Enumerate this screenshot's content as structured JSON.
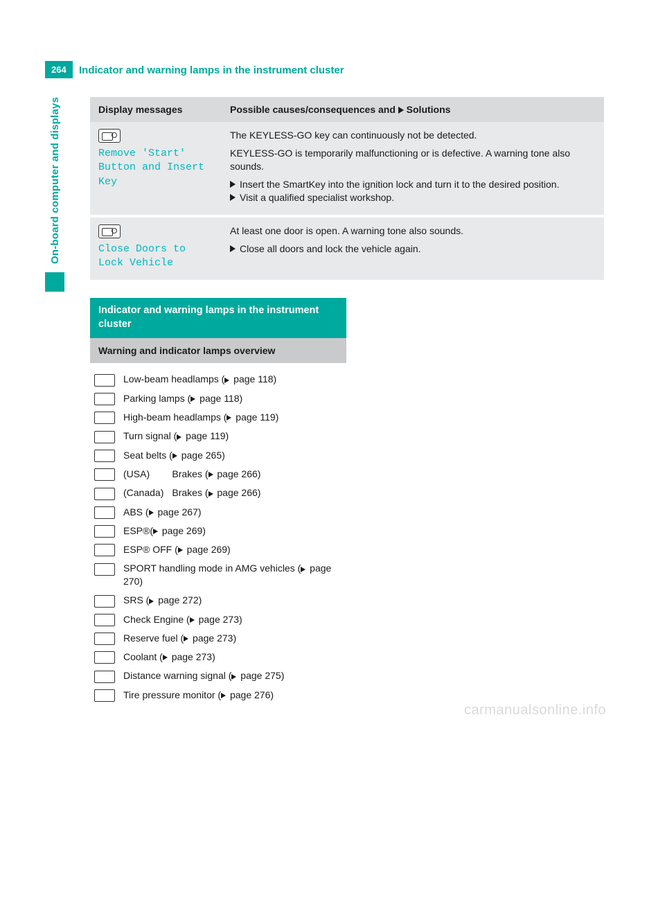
{
  "page_number": "264",
  "page_title": "Indicator and warning lamps in the instrument cluster",
  "side_tab": "On-board computer and displays",
  "brand_color": "#00a99d",
  "display_text_color": "#00b9c2",
  "table_header_bg": "#d9dadb",
  "table_row_bg": "#e8e9ea",
  "sub_header_bg": "#c9cacb",
  "msg_table": {
    "col1_header": "Display messages",
    "col2_header_prefix": "Possible causes/consequences and ",
    "col2_header_suffix": " Solutions",
    "rows": [
      {
        "display": "Remove 'Start'\nButton and Insert\nKey",
        "causes": [
          "The KEYLESS-GO key can continuously not be detected.",
          "KEYLESS-GO is temporarily malfunctioning or is defective. A warning tone also sounds."
        ],
        "solutions": [
          "Insert the SmartKey into the ignition lock and turn it to the desired position.",
          "Visit a qualified specialist workshop."
        ]
      },
      {
        "display": "Close Doors to\nLock Vehicle",
        "causes": [
          "At least one door is open. A warning tone also sounds."
        ],
        "solutions": [
          "Close all doors and lock the vehicle again."
        ]
      }
    ]
  },
  "section_header": "Indicator and warning lamps in the instrument cluster",
  "sub_header": "Warning and indicator lamps overview",
  "lamps": [
    {
      "loc": "",
      "desc_prefix": "Low-beam headlamps (",
      "page_ref": " page 118)"
    },
    {
      "loc": "",
      "desc_prefix": "Parking lamps (",
      "page_ref": " page 118)"
    },
    {
      "loc": "",
      "desc_prefix": "High-beam headlamps (",
      "page_ref": " page 119)"
    },
    {
      "loc": "",
      "desc_prefix": "Turn signal (",
      "page_ref": " page 119)"
    },
    {
      "loc": "",
      "desc_prefix": "Seat belts (",
      "page_ref": " page 265)"
    },
    {
      "loc": "(USA)",
      "desc_prefix": "Brakes (",
      "page_ref": " page 266)"
    },
    {
      "loc": "(Canada)",
      "desc_prefix": "Brakes (",
      "page_ref": " page 266)"
    },
    {
      "loc": "",
      "desc_prefix": "ABS (",
      "page_ref": " page 267)"
    },
    {
      "loc": "",
      "desc_prefix": "ESP®(",
      "page_ref": " page 269)"
    },
    {
      "loc": "",
      "desc_prefix": "ESP® OFF (",
      "page_ref": " page 269)"
    },
    {
      "loc": "",
      "desc_prefix": "SPORT handling mode in AMG vehicles (",
      "page_ref": " page 270)"
    },
    {
      "loc": "",
      "desc_prefix": "SRS (",
      "page_ref": " page 272)"
    },
    {
      "loc": "",
      "desc_prefix": "Check Engine (",
      "page_ref": " page 273)"
    },
    {
      "loc": "",
      "desc_prefix": "Reserve fuel (",
      "page_ref": " page 273)"
    },
    {
      "loc": "",
      "desc_prefix": "Coolant (",
      "page_ref": " page 273)"
    },
    {
      "loc": "",
      "desc_prefix": "Distance warning signal (",
      "page_ref": " page 275)"
    },
    {
      "loc": "",
      "desc_prefix": "Tire pressure monitor (",
      "page_ref": " page 276)"
    }
  ],
  "watermark": "carmanualsonline.info"
}
